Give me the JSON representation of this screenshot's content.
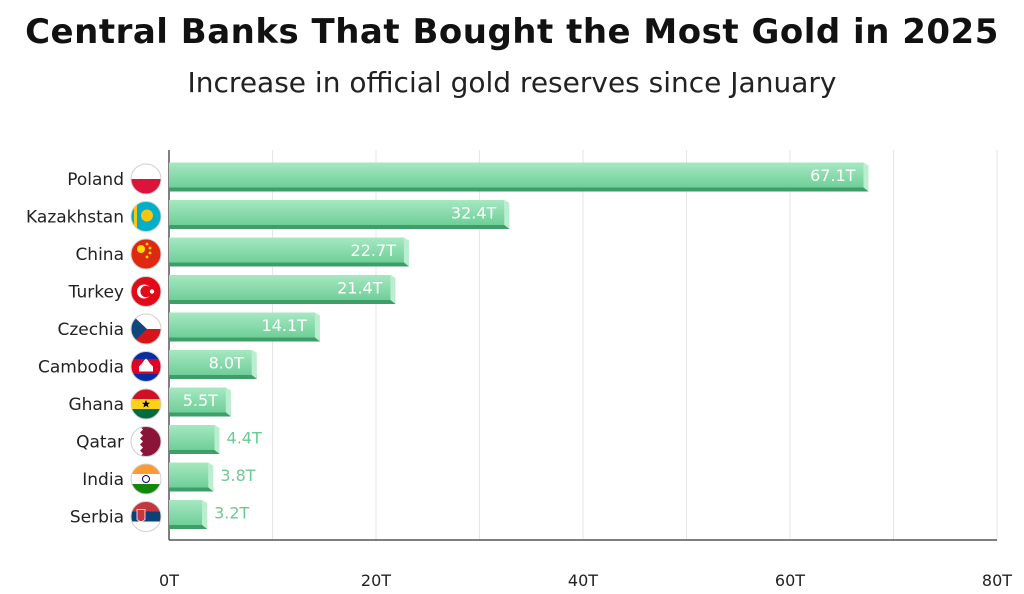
{
  "chart_data": {
    "type": "bar",
    "orientation": "horizontal",
    "title": "Central Banks That Bought the Most Gold in 2025",
    "subtitle": "Increase in official gold reserves since January",
    "categories": [
      "Poland",
      "Kazakhstan",
      "China",
      "Turkey",
      "Czechia",
      "Cambodia",
      "Ghana",
      "Qatar",
      "India",
      "Serbia"
    ],
    "values": [
      67.1,
      32.4,
      22.7,
      21.4,
      14.1,
      8.0,
      5.5,
      4.4,
      3.8,
      3.2
    ],
    "value_labels": [
      "67.1T",
      "32.4T",
      "22.7T",
      "21.4T",
      "14.1T",
      "8.0T",
      "5.5T",
      "4.4T",
      "3.8T",
      "3.2T"
    ],
    "flags": [
      "flag-poland-icon",
      "flag-kazakhstan-icon",
      "flag-china-icon",
      "flag-turkey-icon",
      "flag-czechia-icon",
      "flag-cambodia-icon",
      "flag-ghana-icon",
      "flag-qatar-icon",
      "flag-india-icon",
      "flag-serbia-icon"
    ],
    "xlim": [
      0,
      80
    ],
    "xticks": [
      0,
      20,
      40,
      60,
      80
    ],
    "xtick_labels": [
      "0T",
      "20T",
      "40T",
      "60T",
      "80T"
    ],
    "grid": true,
    "colors": {
      "bar": "#7fd6a4",
      "bar_dark": "#3e9e68",
      "label_outside": "#6cc994"
    }
  }
}
